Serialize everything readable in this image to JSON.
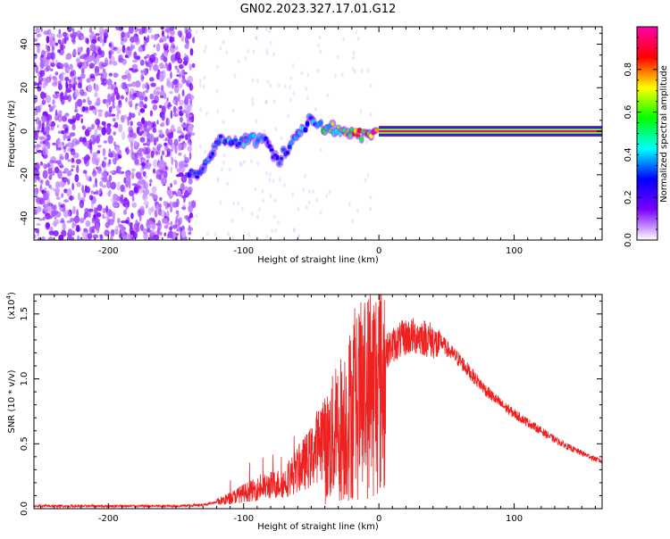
{
  "figure": {
    "title": "GN02.2023.327.17.01.G12"
  },
  "chart_data": [
    {
      "type": "heatmap",
      "xlabel": "Height of straight line (km)",
      "ylabel": "Frequency (Hz)",
      "xlim": [
        -255,
        165
      ],
      "ylim": [
        -50,
        48
      ],
      "x_ticks": [
        -200,
        -100,
        0,
        100
      ],
      "y_ticks": [
        -40,
        -20,
        0,
        20,
        40
      ],
      "grid": false,
      "colorbar": {
        "label": "Normalized spectral amplitude",
        "range": [
          0.0,
          1.0
        ],
        "ticks": [
          0.0,
          0.2,
          0.4,
          0.6,
          0.8
        ],
        "tick_labels": [
          "0.0",
          "0.2",
          "0.4",
          "0.6",
          "0.8"
        ],
        "colormap": [
          "#ffffff",
          "#7b00ff",
          "#0000ff",
          "#00ffff",
          "#00ff00",
          "#ffff00",
          "#ff0000",
          "#ff00aa"
        ]
      },
      "signal_trace": [
        {
          "x": -140,
          "y": -20,
          "amp": 0.3
        },
        {
          "x": -130,
          "y": -19,
          "amp": 0.4
        },
        {
          "x": -120,
          "y": -4,
          "amp": 0.35
        },
        {
          "x": -100,
          "y": -5,
          "amp": 0.4
        },
        {
          "x": -85,
          "y": -3,
          "amp": 0.35
        },
        {
          "x": -75,
          "y": -14,
          "amp": 0.3
        },
        {
          "x": -60,
          "y": -2,
          "amp": 0.4
        },
        {
          "x": -50,
          "y": 6,
          "amp": 0.35
        },
        {
          "x": -40,
          "y": 2,
          "amp": 0.5
        },
        {
          "x": -30,
          "y": 1,
          "amp": 0.6
        },
        {
          "x": -20,
          "y": -1,
          "amp": 0.7
        },
        {
          "x": -10,
          "y": -2,
          "amp": 0.8
        },
        {
          "x": 0,
          "y": 0,
          "amp": 0.9
        },
        {
          "x": 50,
          "y": 0,
          "amp": 0.95
        },
        {
          "x": 100,
          "y": 0,
          "amp": 0.95
        },
        {
          "x": 165,
          "y": 0,
          "amp": 0.95
        }
      ]
    },
    {
      "type": "line",
      "xlabel": "Height of straight line (km)",
      "ylabel": "SNR (10 * v/v)",
      "y_multiplier": "(x10",
      "y_multiplier_exp": "4",
      "y_multiplier_close": ")",
      "xlim": [
        -255,
        165
      ],
      "ylim": [
        0,
        1.65
      ],
      "x_ticks": [
        -200,
        -100,
        0,
        100
      ],
      "y_ticks": [
        0.0,
        0.5,
        1.0,
        1.5
      ],
      "y_tick_labels": [
        "0.0",
        "0.5",
        "1.0",
        "1.5"
      ],
      "color": "#ee2020",
      "grid": false,
      "series": [
        {
          "x": [
            -255,
            -200,
            -150,
            -130,
            -120,
            -110,
            -100,
            -90,
            -80,
            -70,
            -60,
            -50,
            -40,
            -30,
            -20,
            -10,
            0,
            10,
            20,
            30,
            40,
            50,
            60,
            70,
            80,
            90,
            100,
            110,
            120,
            130,
            140,
            150,
            165
          ],
          "y": [
            0.02,
            0.02,
            0.02,
            0.03,
            0.05,
            0.08,
            0.12,
            0.15,
            0.18,
            0.2,
            0.3,
            0.4,
            0.6,
            0.8,
            1.0,
            1.15,
            1.28,
            1.4,
            1.47,
            1.48,
            1.44,
            1.3,
            1.2,
            1.07,
            0.95,
            0.85,
            0.77,
            0.7,
            0.63,
            0.56,
            0.5,
            0.45,
            0.38
          ]
        }
      ]
    }
  ]
}
